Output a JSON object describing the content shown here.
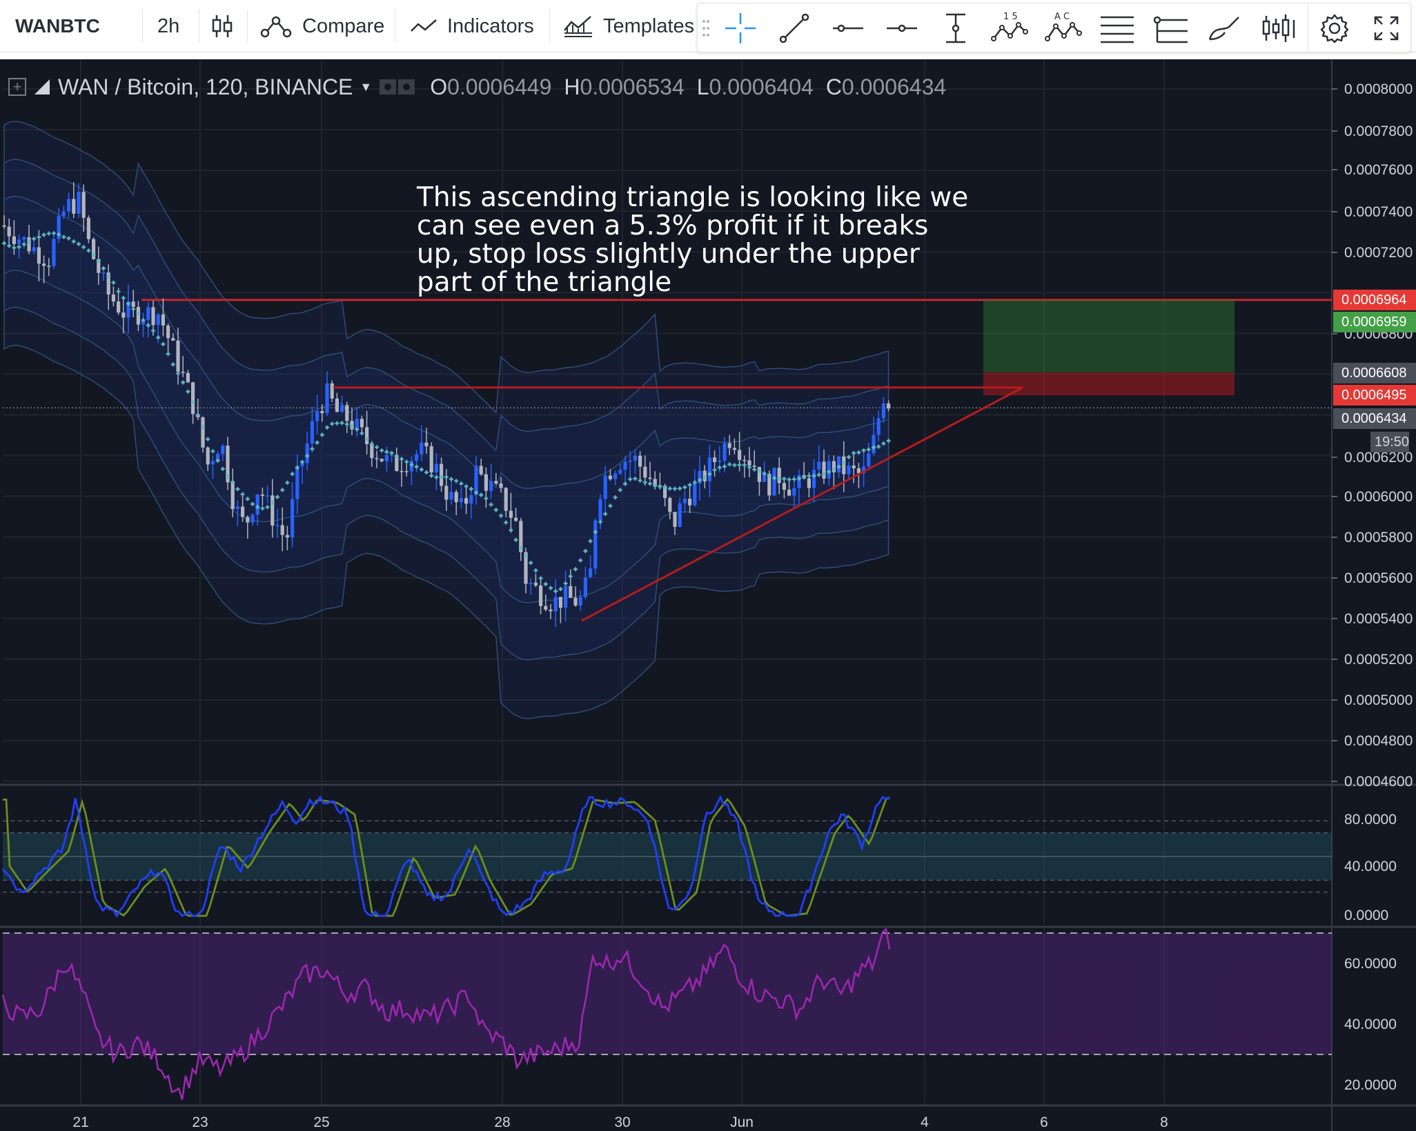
{
  "toolbar": {
    "symbol": "WANBTC",
    "interval": "2h",
    "compare_label": "Compare",
    "indicators_label": "Indicators",
    "templates_label": "Templates"
  },
  "drawing_tools": [
    "crosshair",
    "trend-line",
    "horizontal-line",
    "horizontal-ray",
    "vertical-line",
    "abcd-pattern",
    "abc-pattern",
    "fib-retracement",
    "pitchfork",
    "brush",
    "long-position",
    "settings",
    "fullscreen"
  ],
  "drawing_tool_glyphs": {
    "pattern_15": "1 5",
    "pattern_ac": "A C"
  },
  "legend": {
    "title": "WAN / Bitcoin, 120, BINANCE",
    "o_label": "O",
    "o_value": "0.0006449",
    "h_label": "H",
    "h_value": "0.0006534",
    "l_label": "L",
    "l_value": "0.0006404",
    "c_label": "C",
    "c_value": "0.0006434"
  },
  "annotation": {
    "text": "This ascending triangle is looking like we can see even a 5.3% profit if it breaks up, stop loss slightly under the upper part of the triangle"
  },
  "price_axis": {
    "ticks": [
      "0.0008000",
      "0.0007800",
      "0.0007600",
      "0.0007400",
      "0.0007200",
      "0.0006800",
      "0.0006200",
      "0.0006000",
      "0.0005800",
      "0.0005600",
      "0.0005400",
      "0.0005200",
      "0.0005000",
      "0.0004800",
      "0.0004600"
    ],
    "labels": [
      {
        "value": "0.0006964",
        "bg": "#e53935",
        "fg": "#ffffff"
      },
      {
        "value": "0.0006959",
        "bg": "#43a047",
        "fg": "#ffffff"
      },
      {
        "value": "0.0006608",
        "bg": "#4a4e59",
        "fg": "#ffffff"
      },
      {
        "value": "0.0006495",
        "bg": "#e53935",
        "fg": "#ffffff"
      },
      {
        "value": "0.0006434",
        "bg": "#4a4e59",
        "fg": "#ffffff"
      }
    ],
    "countdown": "19:50"
  },
  "stoch_axis": {
    "ticks": [
      "80.0000",
      "40.0000",
      "0.0000"
    ]
  },
  "rsi_axis": {
    "ticks": [
      "60.0000",
      "40.0000",
      "20.0000"
    ]
  },
  "time_axis": {
    "ticks": [
      "21",
      "23",
      "25",
      "28",
      "30",
      "Jun",
      "4",
      "6",
      "8"
    ]
  },
  "colors": {
    "background": "#131722",
    "up_candle": "#2962ff",
    "down_candle": "#b2b5be",
    "triangle": "#b71c1c",
    "ma": "#5fb7c4",
    "stoch_k": "#1e40ff",
    "stoch_d": "#6b8e23",
    "rsi": "#9c27b0"
  }
}
